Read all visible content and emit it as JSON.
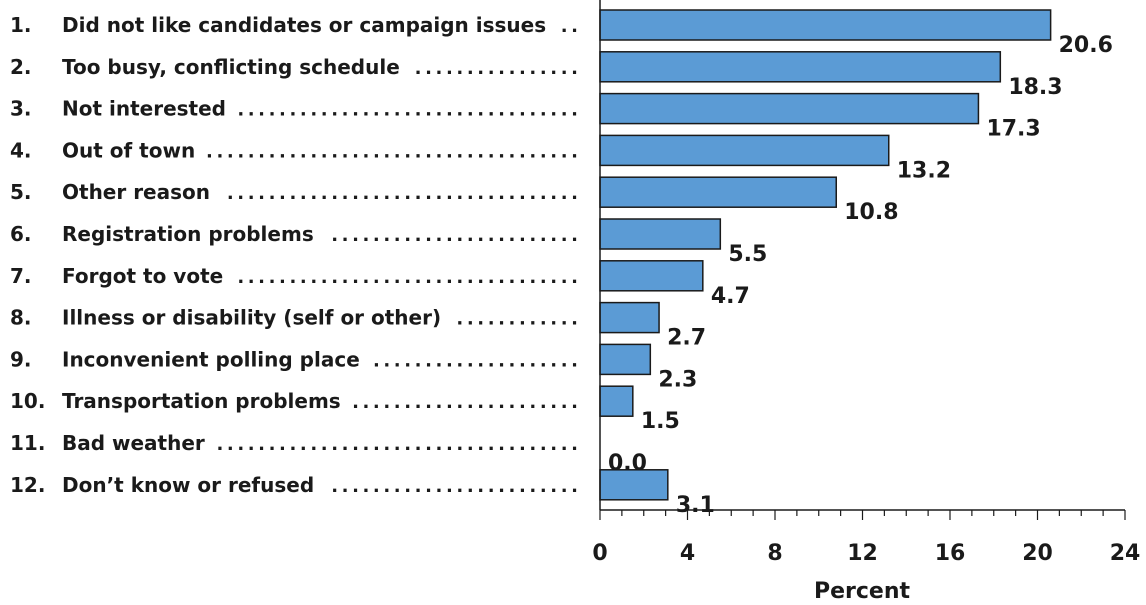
{
  "chart_data": {
    "type": "bar",
    "orientation": "horizontal",
    "categories": [
      "Did not like candidates or campaign issues",
      "Too busy, conflicting schedule",
      "Not interested",
      "Out of town",
      "Other reason",
      "Registration problems",
      "Forgot to vote",
      "Illness or disability (self or other)",
      "Inconvenient polling place",
      "Transportation problems",
      "Bad weather",
      "Don’t know or refused"
    ],
    "numbers": [
      "1.",
      "2.",
      "3.",
      "4.",
      "5.",
      "6.",
      "7.",
      "8.",
      "9.",
      "10.",
      "11.",
      "12."
    ],
    "values": [
      20.6,
      18.3,
      17.3,
      13.2,
      10.8,
      5.5,
      4.7,
      2.7,
      2.3,
      1.5,
      0.0,
      3.1
    ],
    "value_labels": [
      "20.6",
      "18.3",
      "17.3",
      "13.2",
      "10.8",
      "5.5",
      "4.7",
      "2.7",
      "2.3",
      "1.5",
      "0.0",
      "3.1"
    ],
    "xlabel": "Percent",
    "xlim": [
      0,
      24
    ],
    "xticks": [
      0,
      4,
      8,
      12,
      16,
      20,
      24
    ],
    "xtick_labels": [
      "0",
      "4",
      "8",
      "12",
      "16",
      "20",
      "24"
    ],
    "grid": false,
    "legend": "none",
    "bar_color": "#5b9bd5",
    "bar_edge_color": "#1a1a1a"
  }
}
